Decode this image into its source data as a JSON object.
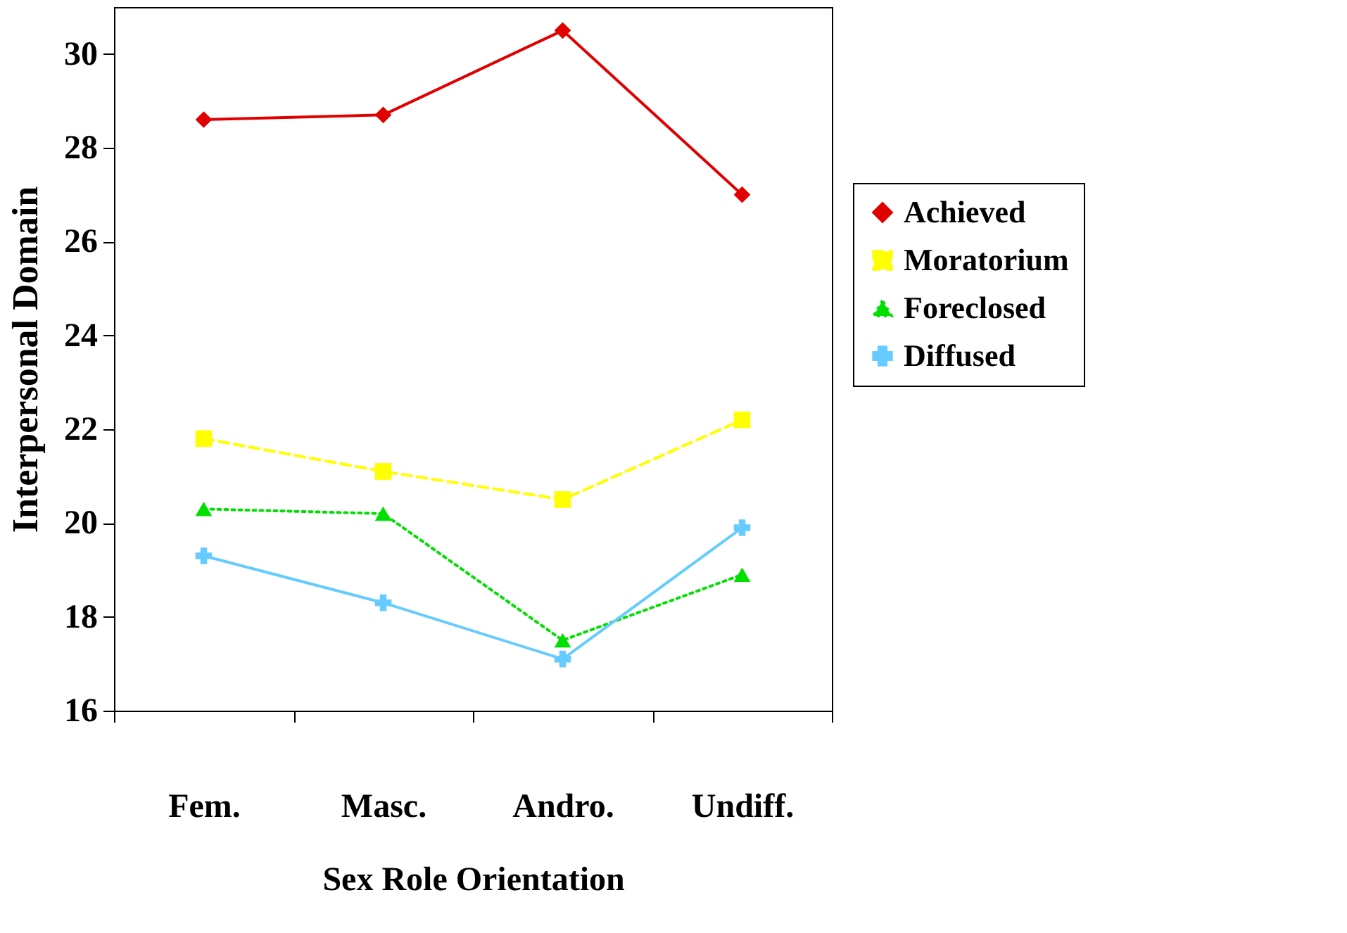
{
  "chart_data": {
    "type": "line",
    "xlabel": "Sex Role Orientation",
    "ylabel": "Interpersonal Domain",
    "categories": [
      "Fem.",
      "Masc.",
      "Andro.",
      "Undiff."
    ],
    "ylim": [
      16,
      31
    ],
    "yticks": [
      16,
      18,
      20,
      22,
      24,
      26,
      28,
      30
    ],
    "grid": false,
    "legend": "right",
    "series": [
      {
        "name": "Achieved",
        "color": "#e00000",
        "values": [
          28.6,
          28.7,
          30.5,
          27.0
        ],
        "marker": "diamond",
        "line_style": "solid"
      },
      {
        "name": "Moratorium",
        "color": "#ffff00",
        "values": [
          21.8,
          21.1,
          20.5,
          22.2
        ],
        "marker": "square",
        "line_style": "dashed"
      },
      {
        "name": "Foreclosed",
        "color": "#00e000",
        "values": [
          20.3,
          20.2,
          17.5,
          18.9
        ],
        "marker": "triangle",
        "line_style": "dotted"
      },
      {
        "name": "Diffused",
        "color": "#66ccff",
        "values": [
          19.3,
          18.3,
          17.1,
          19.9
        ],
        "marker": "cross",
        "line_style": "solid"
      }
    ]
  }
}
